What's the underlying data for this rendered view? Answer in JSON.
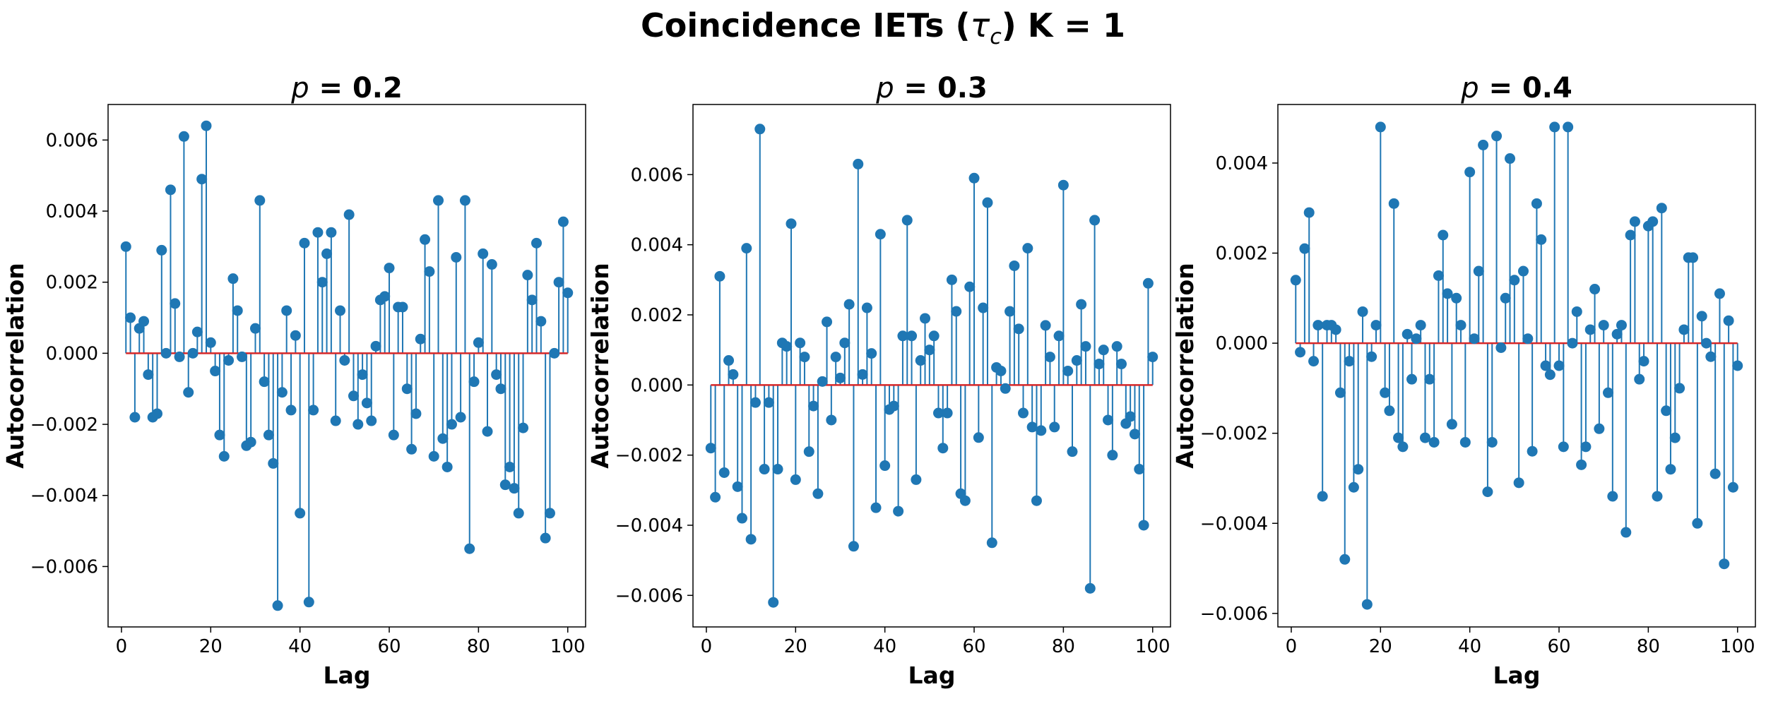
{
  "figure": {
    "title_main": "Coincidence IETs (",
    "title_tau": "τ",
    "title_sub": "c",
    "title_end": ") K = 1",
    "stem_color": "#1f77b4",
    "baseline_color": "#d62728"
  },
  "chart_data": [
    {
      "type": "stem",
      "title_var": "p",
      "title_rest": " = 0.2",
      "xlabel": "Lag",
      "ylabel": "Autocorrelation",
      "xlim": [
        -3,
        104
      ],
      "ylim": [
        -0.0077,
        0.007
      ],
      "xticks": [
        0,
        20,
        40,
        60,
        80,
        100
      ],
      "xtick_labels": [
        "0",
        "20",
        "40",
        "60",
        "80",
        "100"
      ],
      "yticks": [
        -0.006,
        -0.004,
        -0.002,
        0.0,
        0.002,
        0.004,
        0.006
      ],
      "ytick_labels": [
        "−0.006",
        "−0.004",
        "−0.002",
        "0.000",
        "0.002",
        "0.004",
        "0.006"
      ],
      "x": [
        1,
        2,
        3,
        4,
        5,
        6,
        7,
        8,
        9,
        10,
        11,
        12,
        13,
        14,
        15,
        16,
        17,
        18,
        19,
        20,
        21,
        22,
        23,
        24,
        25,
        26,
        27,
        28,
        29,
        30,
        31,
        32,
        33,
        34,
        35,
        36,
        37,
        38,
        39,
        40,
        41,
        42,
        43,
        44,
        45,
        46,
        47,
        48,
        49,
        50,
        51,
        52,
        53,
        54,
        55,
        56,
        57,
        58,
        59,
        60,
        61,
        62,
        63,
        64,
        65,
        66,
        67,
        68,
        69,
        70,
        71,
        72,
        73,
        74,
        75,
        76,
        77,
        78,
        79,
        80,
        81,
        82,
        83,
        84,
        85,
        86,
        87,
        88,
        89,
        90,
        91,
        92,
        93,
        94,
        95,
        96,
        97,
        98,
        99,
        100
      ],
      "values": [
        0.003,
        0.001,
        -0.0018,
        0.0007,
        0.0009,
        -0.0006,
        -0.0018,
        -0.0017,
        0.0029,
        0.0,
        0.0046,
        0.0014,
        -0.0001,
        0.0061,
        -0.0011,
        0.0,
        0.0006,
        0.0049,
        0.0064,
        0.0003,
        -0.0005,
        -0.0023,
        -0.0029,
        -0.0002,
        0.0021,
        0.0012,
        -0.0001,
        -0.0026,
        -0.0025,
        0.0007,
        0.0043,
        -0.0008,
        -0.0023,
        -0.0031,
        -0.0071,
        -0.0011,
        0.0012,
        -0.0016,
        0.0005,
        -0.0045,
        0.0031,
        -0.007,
        -0.0016,
        0.0034,
        0.002,
        0.0028,
        0.0034,
        -0.0019,
        0.0012,
        -0.0002,
        0.0039,
        -0.0012,
        -0.002,
        -0.0006,
        -0.0014,
        -0.0019,
        0.0002,
        0.0015,
        0.0016,
        0.0024,
        -0.0023,
        0.0013,
        0.0013,
        -0.001,
        -0.0027,
        -0.0017,
        0.0004,
        0.0032,
        0.0023,
        -0.0029,
        0.0043,
        -0.0024,
        -0.0032,
        -0.002,
        0.0027,
        -0.0018,
        0.0043,
        -0.0055,
        -0.0008,
        0.0003,
        0.0028,
        -0.0022,
        0.0025,
        -0.0006,
        -0.001,
        -0.0037,
        -0.0032,
        -0.0038,
        -0.0045,
        -0.0021,
        0.0022,
        0.0015,
        0.0031,
        0.0009,
        -0.0052,
        -0.0045,
        0.0,
        0.002,
        0.0037,
        0.0017
      ]
    },
    {
      "type": "stem",
      "title_var": "p",
      "title_rest": " = 0.3",
      "xlabel": "Lag",
      "ylabel": "Autocorrelation",
      "xlim": [
        -3,
        104
      ],
      "ylim": [
        -0.0069,
        0.008
      ],
      "xticks": [
        0,
        20,
        40,
        60,
        80,
        100
      ],
      "xtick_labels": [
        "0",
        "20",
        "40",
        "60",
        "80",
        "100"
      ],
      "yticks": [
        -0.006,
        -0.004,
        -0.002,
        0.0,
        0.002,
        0.004,
        0.006
      ],
      "ytick_labels": [
        "−0.006",
        "−0.004",
        "−0.002",
        "0.000",
        "0.002",
        "0.004",
        "0.006"
      ],
      "x": [
        1,
        2,
        3,
        4,
        5,
        6,
        7,
        8,
        9,
        10,
        11,
        12,
        13,
        14,
        15,
        16,
        17,
        18,
        19,
        20,
        21,
        22,
        23,
        24,
        25,
        26,
        27,
        28,
        29,
        30,
        31,
        32,
        33,
        34,
        35,
        36,
        37,
        38,
        39,
        40,
        41,
        42,
        43,
        44,
        45,
        46,
        47,
        48,
        49,
        50,
        51,
        52,
        53,
        54,
        55,
        56,
        57,
        58,
        59,
        60,
        61,
        62,
        63,
        64,
        65,
        66,
        67,
        68,
        69,
        70,
        71,
        72,
        73,
        74,
        75,
        76,
        77,
        78,
        79,
        80,
        81,
        82,
        83,
        84,
        85,
        86,
        87,
        88,
        89,
        90,
        91,
        92,
        93,
        94,
        95,
        96,
        97,
        98,
        99,
        100
      ],
      "values": [
        -0.0018,
        -0.0032,
        0.0031,
        -0.0025,
        0.0007,
        0.0003,
        -0.0029,
        -0.0038,
        0.0039,
        -0.0044,
        -0.0005,
        0.0073,
        -0.0024,
        -0.0005,
        -0.0062,
        -0.0024,
        0.0012,
        0.0011,
        0.0046,
        -0.0027,
        0.0012,
        0.0008,
        -0.0019,
        -0.0006,
        -0.0031,
        0.0001,
        0.0018,
        -0.001,
        0.0008,
        0.0002,
        0.0012,
        0.0023,
        -0.0046,
        0.0063,
        0.0003,
        0.0022,
        0.0009,
        -0.0035,
        0.0043,
        -0.0023,
        -0.0007,
        -0.0006,
        -0.0036,
        0.0014,
        0.0047,
        0.0014,
        -0.0027,
        0.0007,
        0.0019,
        0.001,
        0.0014,
        -0.0008,
        -0.0018,
        -0.0008,
        0.003,
        0.0021,
        -0.0031,
        -0.0033,
        0.0028,
        0.0059,
        -0.0015,
        0.0022,
        0.0052,
        -0.0045,
        0.0005,
        0.0004,
        -0.0001,
        0.0021,
        0.0034,
        0.0016,
        -0.0008,
        0.0039,
        -0.0012,
        -0.0033,
        -0.0013,
        0.0017,
        0.0008,
        -0.0012,
        0.0014,
        0.0057,
        0.0004,
        -0.0019,
        0.0007,
        0.0023,
        0.0011,
        -0.0058,
        0.0047,
        0.0006,
        0.001,
        -0.001,
        -0.002,
        0.0011,
        0.0006,
        -0.0011,
        -0.0009,
        -0.0014,
        -0.0024,
        -0.004,
        0.0029,
        0.0008
      ]
    },
    {
      "type": "stem",
      "title_var": "p",
      "title_rest": " = 0.4",
      "xlabel": "Lag",
      "ylabel": "Autocorrelation",
      "xlim": [
        -3,
        104
      ],
      "ylim": [
        -0.0063,
        0.0053
      ],
      "xticks": [
        0,
        20,
        40,
        60,
        80,
        100
      ],
      "xtick_labels": [
        "0",
        "20",
        "40",
        "60",
        "80",
        "100"
      ],
      "yticks": [
        -0.006,
        -0.004,
        -0.002,
        0.0,
        0.002,
        0.004
      ],
      "ytick_labels": [
        "−0.006",
        "−0.004",
        "−0.002",
        "0.000",
        "0.002",
        "0.004"
      ],
      "x": [
        1,
        2,
        3,
        4,
        5,
        6,
        7,
        8,
        9,
        10,
        11,
        12,
        13,
        14,
        15,
        16,
        17,
        18,
        19,
        20,
        21,
        22,
        23,
        24,
        25,
        26,
        27,
        28,
        29,
        30,
        31,
        32,
        33,
        34,
        35,
        36,
        37,
        38,
        39,
        40,
        41,
        42,
        43,
        44,
        45,
        46,
        47,
        48,
        49,
        50,
        51,
        52,
        53,
        54,
        55,
        56,
        57,
        58,
        59,
        60,
        61,
        62,
        63,
        64,
        65,
        66,
        67,
        68,
        69,
        70,
        71,
        72,
        73,
        74,
        75,
        76,
        77,
        78,
        79,
        80,
        81,
        82,
        83,
        84,
        85,
        86,
        87,
        88,
        89,
        90,
        91,
        92,
        93,
        94,
        95,
        96,
        97,
        98,
        99,
        100
      ],
      "values": [
        0.0014,
        -0.0002,
        0.0021,
        0.0029,
        -0.0004,
        0.0004,
        -0.0034,
        0.0004,
        0.0004,
        0.0003,
        -0.0011,
        -0.0048,
        -0.0004,
        -0.0032,
        -0.0028,
        0.0007,
        -0.0058,
        -0.0003,
        0.0004,
        0.0048,
        -0.0011,
        -0.0015,
        0.0031,
        -0.0021,
        -0.0023,
        0.0002,
        -0.0008,
        0.0001,
        0.0004,
        -0.0021,
        -0.0008,
        -0.0022,
        0.0015,
        0.0024,
        0.0011,
        -0.0018,
        0.001,
        0.0004,
        -0.0022,
        0.0038,
        0.0001,
        0.0016,
        0.0044,
        -0.0033,
        -0.0022,
        0.0046,
        -0.0001,
        0.001,
        0.0041,
        0.0014,
        -0.0031,
        0.0016,
        0.0001,
        -0.0024,
        0.0031,
        0.0023,
        -0.0005,
        -0.0007,
        0.0048,
        -0.0005,
        -0.0023,
        0.0048,
        0.0,
        0.0007,
        -0.0027,
        -0.0023,
        0.0003,
        0.0012,
        -0.0019,
        0.0004,
        -0.0011,
        -0.0034,
        0.0002,
        0.0004,
        -0.0042,
        0.0024,
        0.0027,
        -0.0008,
        -0.0004,
        0.0026,
        0.0027,
        -0.0034,
        0.003,
        -0.0015,
        -0.0028,
        -0.0021,
        -0.001,
        0.0003,
        0.0019,
        0.0019,
        -0.004,
        0.0006,
        0.0,
        -0.0003,
        -0.0029,
        0.0011,
        -0.0049,
        0.0005,
        -0.0032,
        -0.0005
      ]
    }
  ]
}
